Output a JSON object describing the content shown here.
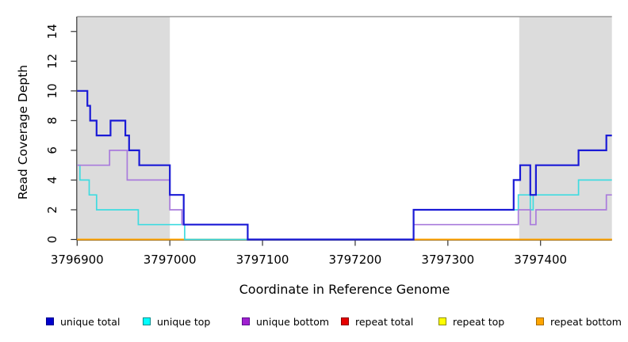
{
  "figure": {
    "background": "#FFFFFF",
    "shade_color": "#DCDCDC",
    "top_border_color": "#999999",
    "axis_color": "#333333"
  },
  "chart_data": {
    "type": "line",
    "subtype": "step-coverage",
    "title": "",
    "xlabel": "Coordinate in Reference Genome",
    "ylabel": "Read Coverage Depth",
    "xlim": [
      3796900,
      3797477
    ],
    "ylim": [
      0,
      15
    ],
    "x_ticks": [
      3796900,
      3797000,
      3797100,
      3797200,
      3797300,
      3797400
    ],
    "y_ticks": [
      0,
      2,
      4,
      6,
      8,
      10,
      12,
      14
    ],
    "grid": false,
    "top_border_at_y": 15,
    "shaded_regions": [
      {
        "name": "repeat-region-left",
        "x0": 3796900,
        "x1": 3797000
      },
      {
        "name": "repeat-region-right",
        "x0": 3797377,
        "x1": 3797477
      }
    ],
    "series": [
      {
        "name": "repeat total",
        "color": "#E00000",
        "width": 1.5,
        "steps": [
          [
            3796900,
            0
          ]
        ]
      },
      {
        "name": "repeat top",
        "color": "#FFFF00",
        "width": 1.5,
        "steps": [
          [
            3796900,
            0
          ]
        ]
      },
      {
        "name": "repeat bottom",
        "color": "#FFA200",
        "width": 2,
        "steps": [
          [
            3796900,
            0
          ]
        ]
      },
      {
        "name": "unique top",
        "color": "#3FDBE0",
        "width": 1.7,
        "steps": [
          [
            3796900,
            5
          ],
          [
            3796903,
            4
          ],
          [
            3796913,
            3
          ],
          [
            3796921,
            2
          ],
          [
            3796966,
            1
          ],
          [
            3797016,
            0
          ],
          [
            3797263,
            2
          ],
          [
            3797376,
            3
          ],
          [
            3797389,
            2
          ],
          [
            3797392,
            3
          ],
          [
            3797441,
            4
          ]
        ]
      },
      {
        "name": "unique bottom",
        "color": "#A97BDC",
        "width": 1.7,
        "steps": [
          [
            3796900,
            5
          ],
          [
            3796935,
            6
          ],
          [
            3796954,
            4
          ],
          [
            3797000,
            2
          ],
          [
            3797013,
            1
          ],
          [
            3797084,
            0
          ],
          [
            3797263,
            1
          ],
          [
            3797376,
            2
          ],
          [
            3797389,
            1
          ],
          [
            3797395,
            2
          ],
          [
            3797471,
            3
          ]
        ]
      },
      {
        "name": "unique total",
        "color": "#1A1AD6",
        "width": 2.2,
        "steps": [
          [
            3796900,
            10
          ],
          [
            3796911,
            9
          ],
          [
            3796914,
            8
          ],
          [
            3796921,
            7
          ],
          [
            3796936,
            8
          ],
          [
            3796952,
            7
          ],
          [
            3796956,
            6
          ],
          [
            3796967,
            5
          ],
          [
            3797000,
            3
          ],
          [
            3797015,
            1
          ],
          [
            3797084,
            0
          ],
          [
            3797263,
            2
          ],
          [
            3797371,
            4
          ],
          [
            3797378,
            5
          ],
          [
            3797389,
            3
          ],
          [
            3797395,
            5
          ],
          [
            3797441,
            6
          ],
          [
            3797471,
            7
          ]
        ]
      }
    ]
  },
  "legend": {
    "items": [
      {
        "label": "unique total",
        "fill": "#0000CD",
        "border": "#00008B"
      },
      {
        "label": "unique top",
        "fill": "#00FFFF",
        "border": "#008B8B"
      },
      {
        "label": "unique bottom",
        "fill": "#A020D0",
        "border": "#5B0E8E"
      },
      {
        "label": "repeat total",
        "fill": "#E60000",
        "border": "#8B0000"
      },
      {
        "label": "repeat top",
        "fill": "#FFFF00",
        "border": "#8B8B00"
      },
      {
        "label": "repeat bottom",
        "fill": "#FFA500",
        "border": "#A66B00"
      }
    ]
  }
}
